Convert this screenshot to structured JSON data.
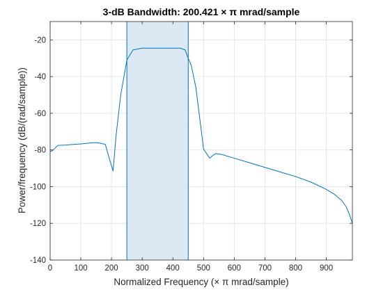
{
  "chart_data": {
    "type": "line",
    "title": "3-dB  Bandwidth:  200.421  × π  mrad/sample",
    "xlabel": "Normalized  Frequency    (× π  mrad/sample)",
    "ylabel": "Power/frequency (dB/(rad/sample))",
    "xlim": [
      0,
      985
    ],
    "ylim": [
      -140,
      -10
    ],
    "xticks": [
      0,
      100,
      200,
      300,
      400,
      500,
      600,
      700,
      800,
      900
    ],
    "yticks": [
      -140,
      -120,
      -100,
      -80,
      -60,
      -40,
      -20
    ],
    "grid": true,
    "bandwidth_region": {
      "x_start": 250,
      "x_end": 450
    },
    "colors": {
      "line": "#0072BD",
      "band_fill": "#dbe9f5",
      "band_edge": "#0072BD",
      "grid": "#e6e6e6",
      "axis": "#262626"
    },
    "series": [
      {
        "x": [
          0,
          10,
          25,
          50,
          75,
          100,
          125,
          150,
          170,
          180,
          190,
          205,
          215,
          230,
          250,
          270,
          300,
          325,
          350,
          375,
          400,
          425,
          440,
          450,
          460,
          475,
          500,
          520,
          530,
          540,
          560,
          600,
          650,
          700,
          750,
          800,
          850,
          900,
          925,
          950,
          965,
          975,
          985
        ],
        "y": [
          -81,
          -80,
          -77.5,
          -77.3,
          -77,
          -76.7,
          -76.3,
          -76,
          -76.5,
          -77,
          -83,
          -91.5,
          -72,
          -50,
          -31,
          -25.5,
          -24.5,
          -24.5,
          -24.5,
          -24.5,
          -24.5,
          -24.5,
          -25.5,
          -30,
          -34,
          -46,
          -79.5,
          -84.5,
          -83,
          -82,
          -82.5,
          -84.5,
          -87,
          -89.5,
          -92,
          -94.5,
          -97.5,
          -101.5,
          -104,
          -107.5,
          -111,
          -115,
          -120
        ]
      }
    ]
  }
}
